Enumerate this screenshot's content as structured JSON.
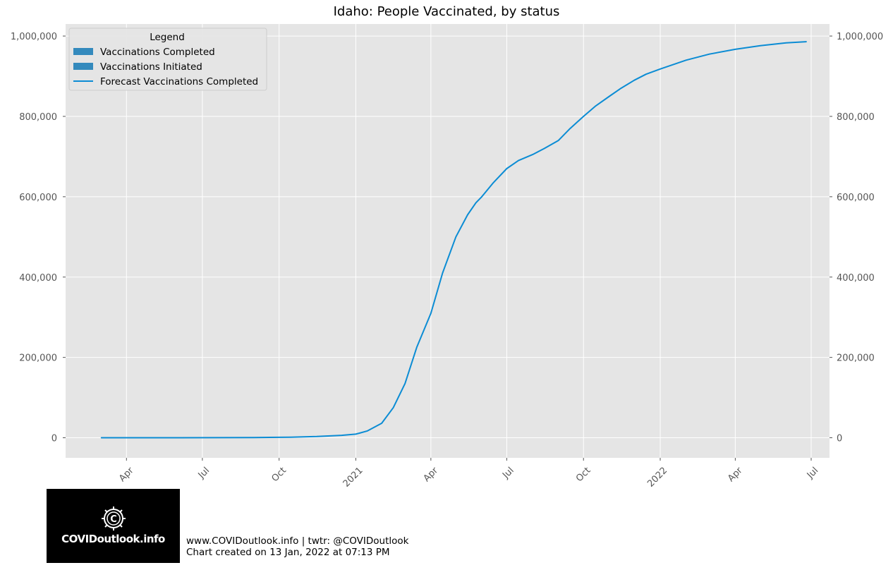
{
  "chart_data": {
    "type": "line",
    "title": "Idaho: People Vaccinated, by status",
    "xlabel": "",
    "ylabel": "",
    "ylim": [
      -50000,
      1030000
    ],
    "xlim": [
      "2020-01-19",
      "2022-07-23"
    ],
    "y_ticks": [
      0,
      200000,
      400000,
      600000,
      800000,
      1000000
    ],
    "y_tick_labels": [
      "0",
      "200,000",
      "400,000",
      "600,000",
      "800,000",
      "1,000,000"
    ],
    "x_ticks": [
      "2020-04-01",
      "2020-07-01",
      "2020-10-01",
      "2021-01-01",
      "2021-04-01",
      "2021-07-01",
      "2021-10-01",
      "2022-01-01",
      "2022-04-01",
      "2022-07-01"
    ],
    "x_tick_labels": [
      "Apr",
      "Jul",
      "Oct",
      "2021",
      "Apr",
      "Jul",
      "Oct",
      "2022",
      "Apr",
      "Jul"
    ],
    "grid": true,
    "legend": {
      "title": "Legend",
      "placement": "top-left",
      "entries": [
        {
          "label": "Vaccinations Completed",
          "kind": "patch",
          "color": "#348abd"
        },
        {
          "label": "Vaccinations Initiated",
          "kind": "patch",
          "color": "#348abd"
        },
        {
          "label": "Forecast Vaccinations Completed",
          "kind": "line",
          "color": "#0b8cd4"
        }
      ]
    },
    "series": [
      {
        "name": "Forecast Vaccinations Completed",
        "color": "#0b8cd4",
        "x": [
          "2020-03-02",
          "2020-06-01",
          "2020-09-01",
          "2020-10-15",
          "2020-11-15",
          "2020-12-15",
          "2021-01-01",
          "2021-01-15",
          "2021-02-01",
          "2021-02-15",
          "2021-03-01",
          "2021-03-15",
          "2021-04-01",
          "2021-04-15",
          "2021-05-01",
          "2021-05-15",
          "2021-05-25",
          "2021-06-01",
          "2021-06-15",
          "2021-07-01",
          "2021-07-15",
          "2021-08-01",
          "2021-08-15",
          "2021-09-01",
          "2021-09-15",
          "2021-10-01",
          "2021-10-15",
          "2021-11-01",
          "2021-11-15",
          "2021-12-01",
          "2021-12-15",
          "2022-01-01",
          "2022-02-01",
          "2022-03-01",
          "2022-04-01",
          "2022-05-01",
          "2022-06-01",
          "2022-06-25"
        ],
        "y": [
          0,
          0,
          500,
          1500,
          3000,
          6000,
          9000,
          17000,
          36000,
          75000,
          135000,
          225000,
          310000,
          410000,
          500000,
          555000,
          585000,
          600000,
          635000,
          670000,
          690000,
          705000,
          720000,
          740000,
          770000,
          800000,
          825000,
          850000,
          870000,
          890000,
          905000,
          918000,
          940000,
          955000,
          967000,
          976000,
          983000,
          986000
        ]
      }
    ]
  },
  "footer": {
    "line1": "www.COVIDoutlook.info | twtr: @COVIDoutlook",
    "line2": "Chart created on 13 Jan, 2022 at 07:13 PM"
  },
  "logo": {
    "text": "COVIDoutlook.info",
    "icon": "covid-virus-icon"
  }
}
